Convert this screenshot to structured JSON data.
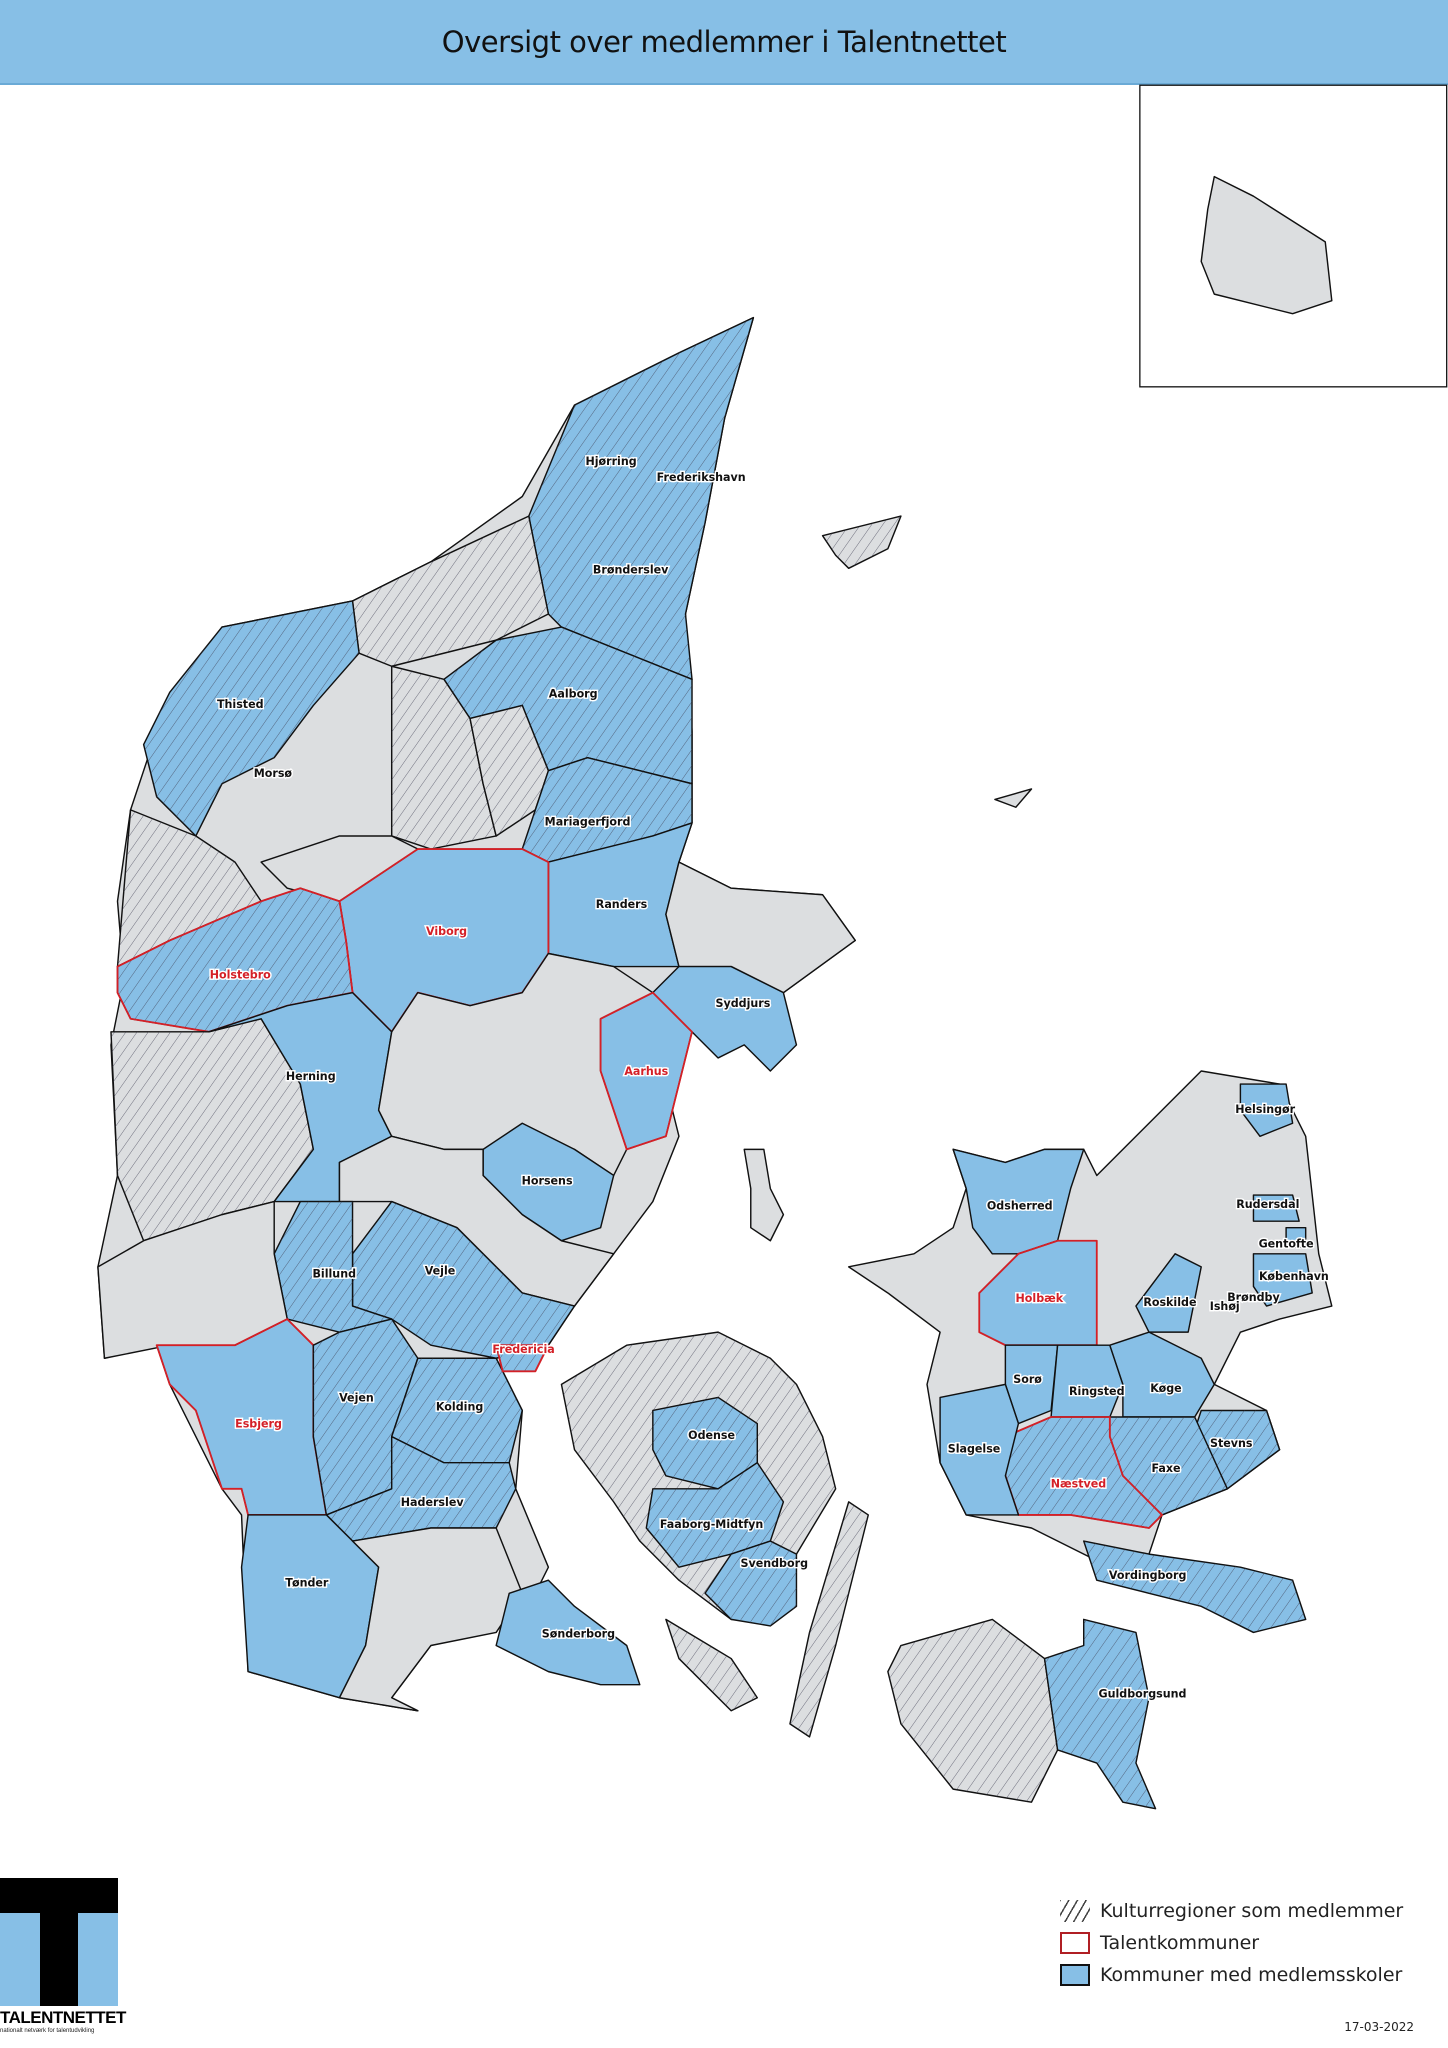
{
  "header": {
    "title": "Oversigt over medlemmer i Talentnettet"
  },
  "colors": {
    "member_fill": "#87bfe6",
    "nonmember_fill": "#dcdee0",
    "talent_outline": "#d42027",
    "header_bg": "#87bfe6"
  },
  "map": {
    "labels": [
      {
        "name": "Hjørring",
        "talent": false
      },
      {
        "name": "Frederikshavn",
        "talent": false
      },
      {
        "name": "Brønderslev",
        "talent": false
      },
      {
        "name": "Thisted",
        "talent": false
      },
      {
        "name": "Aalborg",
        "talent": false
      },
      {
        "name": "Morsø",
        "talent": false
      },
      {
        "name": "Mariagerfjord",
        "talent": false
      },
      {
        "name": "Randers",
        "talent": false
      },
      {
        "name": "Viborg",
        "talent": true
      },
      {
        "name": "Holstebro",
        "talent": true
      },
      {
        "name": "Syddjurs",
        "talent": false
      },
      {
        "name": "Herning",
        "talent": false
      },
      {
        "name": "Aarhus",
        "talent": true
      },
      {
        "name": "Helsingør",
        "talent": false
      },
      {
        "name": "Horsens",
        "talent": false
      },
      {
        "name": "Odsherred",
        "talent": false
      },
      {
        "name": "Rudersdal",
        "talent": false
      },
      {
        "name": "Gentofte",
        "talent": false
      },
      {
        "name": "København",
        "talent": false
      },
      {
        "name": "Billund",
        "talent": false
      },
      {
        "name": "Vejle",
        "talent": false
      },
      {
        "name": "Holbæk",
        "talent": true
      },
      {
        "name": "Roskilde",
        "talent": false
      },
      {
        "name": "Brøndby",
        "talent": false
      },
      {
        "name": "Ishøj",
        "talent": false
      },
      {
        "name": "Fredericia",
        "talent": true
      },
      {
        "name": "Sorø",
        "talent": false
      },
      {
        "name": "Ringsted",
        "talent": false
      },
      {
        "name": "Køge",
        "talent": false
      },
      {
        "name": "Vejen",
        "talent": false
      },
      {
        "name": "Kolding",
        "talent": false
      },
      {
        "name": "Esbjerg",
        "talent": true
      },
      {
        "name": "Odense",
        "talent": false
      },
      {
        "name": "Slagelse",
        "talent": false
      },
      {
        "name": "Stevns",
        "talent": false
      },
      {
        "name": "Næstved",
        "talent": true
      },
      {
        "name": "Faxe",
        "talent": false
      },
      {
        "name": "Haderslev",
        "talent": false
      },
      {
        "name": "Faaborg-Midtfyn",
        "talent": false
      },
      {
        "name": "Svendborg",
        "talent": false
      },
      {
        "name": "Vordingborg",
        "talent": false
      },
      {
        "name": "Tønder",
        "talent": false
      },
      {
        "name": "Sønderborg",
        "talent": false
      },
      {
        "name": "Guldborgsund",
        "talent": false
      }
    ]
  },
  "legend": {
    "items": [
      {
        "label": "Kulturregioner som medlemmer",
        "symbol": "hatch"
      },
      {
        "label": "Talentkommuner",
        "symbol": "red-outline"
      },
      {
        "label": "Kommuner med medlemsskoler",
        "symbol": "blue-fill"
      }
    ]
  },
  "logo": {
    "name": "TALENTNETTET",
    "tagline": "nationalt netværk for talentudvikling"
  },
  "date": "17-03-2022"
}
